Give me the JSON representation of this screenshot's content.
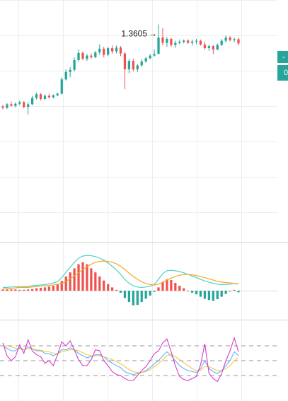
{
  "colors": {
    "up": "#26a69a",
    "down": "#ef5350",
    "macd_line": "#4dd0c6",
    "signal_line": "#f5a623",
    "k_line": "#5ab4ff",
    "d_line": "#f5c542",
    "j_line": "#d63cc8",
    "grid": "#eeeeee",
    "price_tag": "#26a69a",
    "axis_text": "#555555"
  },
  "price_axis": {
    "partial_labels": [
      "-",
      "0"
    ]
  },
  "chart_data": [
    {
      "type": "candlestick",
      "title": "",
      "annotation": {
        "label": "1.3605",
        "arrow": "→",
        "target_value": 1.3605
      },
      "ylim": [
        1.285,
        1.37
      ],
      "candles": [
        [
          1.333,
          1.3335,
          1.3318,
          1.3325
        ],
        [
          1.3325,
          1.3342,
          1.332,
          1.3338
        ],
        [
          1.3338,
          1.3348,
          1.333,
          1.3332
        ],
        [
          1.3332,
          1.3345,
          1.3326,
          1.334
        ],
        [
          1.334,
          1.3352,
          1.3334,
          1.3346
        ],
        [
          1.3346,
          1.335,
          1.3322,
          1.3328
        ],
        [
          1.3328,
          1.3345,
          1.33,
          1.3338
        ],
        [
          1.3338,
          1.337,
          1.3335,
          1.3362
        ],
        [
          1.3362,
          1.3382,
          1.3356,
          1.3376
        ],
        [
          1.3376,
          1.338,
          1.3352,
          1.3358
        ],
        [
          1.3358,
          1.3376,
          1.3355,
          1.337
        ],
        [
          1.337,
          1.3378,
          1.336,
          1.3364
        ],
        [
          1.3364,
          1.3375,
          1.336,
          1.3372
        ],
        [
          1.3372,
          1.3382,
          1.3368,
          1.3378
        ],
        [
          1.3378,
          1.344,
          1.3375,
          1.3432
        ],
        [
          1.3432,
          1.347,
          1.3428,
          1.346
        ],
        [
          1.346,
          1.3478,
          1.344,
          1.3468
        ],
        [
          1.3468,
          1.3515,
          1.3462,
          1.3505
        ],
        [
          1.3505,
          1.3545,
          1.3498,
          1.3532
        ],
        [
          1.3532,
          1.3538,
          1.3505,
          1.351
        ],
        [
          1.351,
          1.3528,
          1.3502,
          1.3522
        ],
        [
          1.3522,
          1.353,
          1.351,
          1.3516
        ],
        [
          1.3516,
          1.354,
          1.3512,
          1.3534
        ],
        [
          1.3534,
          1.3565,
          1.3525,
          1.3548
        ],
        [
          1.3548,
          1.3555,
          1.3515,
          1.3525
        ],
        [
          1.3525,
          1.3555,
          1.352,
          1.355
        ],
        [
          1.355,
          1.356,
          1.353,
          1.3538
        ],
        [
          1.3538,
          1.356,
          1.353,
          1.3552
        ],
        [
          1.3552,
          1.3558,
          1.352,
          1.353
        ],
        [
          1.353,
          1.3536,
          1.3395,
          1.347
        ],
        [
          1.347,
          1.351,
          1.3455,
          1.3502
        ],
        [
          1.3502,
          1.351,
          1.3462,
          1.347
        ],
        [
          1.347,
          1.349,
          1.346,
          1.3485
        ],
        [
          1.3485,
          1.3508,
          1.348,
          1.35
        ],
        [
          1.35,
          1.3518,
          1.3495,
          1.3512
        ],
        [
          1.3512,
          1.3528,
          1.3508,
          1.3522
        ],
        [
          1.3522,
          1.3545,
          1.3518,
          1.3528
        ],
        [
          1.3528,
          1.364,
          1.3528,
          1.359
        ],
        [
          1.359,
          1.3625,
          1.356,
          1.357
        ],
        [
          1.357,
          1.3592,
          1.3555,
          1.3585
        ],
        [
          1.3585,
          1.359,
          1.3555,
          1.3562
        ],
        [
          1.3562,
          1.3578,
          1.3552,
          1.357
        ],
        [
          1.357,
          1.3582,
          1.3565,
          1.3574
        ],
        [
          1.3574,
          1.3583,
          1.3568,
          1.3579
        ],
        [
          1.3579,
          1.3584,
          1.3566,
          1.357
        ],
        [
          1.357,
          1.3582,
          1.356,
          1.3575
        ],
        [
          1.3575,
          1.3585,
          1.3565,
          1.3578
        ],
        [
          1.3578,
          1.3582,
          1.356,
          1.3564
        ],
        [
          1.3564,
          1.3575,
          1.3545,
          1.355
        ],
        [
          1.355,
          1.3564,
          1.354,
          1.3558
        ],
        [
          1.3558,
          1.3562,
          1.3528,
          1.3545
        ],
        [
          1.3545,
          1.3568,
          1.3542,
          1.3562
        ],
        [
          1.3562,
          1.3585,
          1.3558,
          1.3578
        ],
        [
          1.3578,
          1.3598,
          1.357,
          1.359
        ],
        [
          1.359,
          1.3595,
          1.3575,
          1.358
        ],
        [
          1.358,
          1.359,
          1.3572,
          1.3584
        ],
        [
          1.3584,
          1.359,
          1.356,
          1.3568
        ]
      ]
    },
    {
      "type": "macd",
      "title": "",
      "zero_line": true,
      "histogram": [
        0.3,
        0.3,
        0.3,
        0.3,
        0.2,
        0.2,
        0.3,
        0.4,
        0.6,
        0.7,
        0.8,
        1.0,
        1.2,
        1.5,
        2.4,
        3.5,
        4.5,
        5.5,
        6.5,
        7.0,
        6.5,
        5.5,
        4.5,
        3.5,
        2.5,
        1.6,
        0.8,
        0.2,
        -0.5,
        -1.8,
        -2.8,
        -3.6,
        -3.5,
        -2.8,
        -2.0,
        -1.2,
        -0.3,
        0.8,
        2.1,
        2.8,
        2.6,
        1.9,
        1.2,
        0.6,
        0.0,
        -0.5,
        -0.9,
        -1.5,
        -2.0,
        -2.3,
        -2.5,
        -2.1,
        -1.5,
        -0.8,
        -0.2,
        0.2,
        -0.4
      ],
      "macd_line": [
        0.8,
        0.8,
        0.9,
        1.0,
        1.0,
        1.0,
        1.1,
        1.2,
        1.3,
        1.4,
        1.5,
        1.7,
        1.9,
        2.2,
        3.2,
        4.5,
        5.8,
        7.0,
        8.0,
        8.5,
        8.7,
        8.6,
        8.4,
        8.0,
        7.5,
        6.8,
        6.0,
        5.1,
        4.0,
        2.8,
        1.8,
        1.2,
        0.9,
        0.8,
        0.9,
        1.1,
        1.5,
        2.8,
        4.2,
        4.9,
        5.0,
        4.9,
        4.7,
        4.4,
        4.0,
        3.6,
        3.2,
        2.8,
        2.4,
        2.1,
        1.8,
        1.6,
        1.5,
        1.5,
        1.6,
        1.8,
        1.6
      ],
      "signal_line": [
        0.5,
        0.5,
        0.6,
        0.7,
        0.8,
        0.8,
        0.8,
        0.9,
        1.0,
        1.1,
        1.2,
        1.3,
        1.4,
        1.6,
        1.8,
        2.3,
        2.9,
        3.6,
        4.4,
        5.2,
        5.9,
        6.5,
        7.0,
        7.2,
        7.3,
        7.2,
        7.0,
        6.6,
        6.0,
        5.2,
        4.3,
        3.5,
        2.8,
        2.2,
        1.8,
        1.5,
        1.4,
        1.6,
        2.1,
        2.6,
        3.1,
        3.5,
        3.8,
        4.0,
        4.0,
        3.9,
        3.7,
        3.5,
        3.2,
        2.9,
        2.6,
        2.3,
        2.1,
        2.0,
        1.9,
        1.8,
        1.7
      ]
    },
    {
      "type": "line",
      "title": "",
      "reference_levels": [
        20,
        50,
        80
      ],
      "ylim": [
        0,
        100
      ],
      "series": [
        {
          "key": "k",
          "values": [
            80,
            75,
            70,
            70,
            76,
            72,
            78,
            74,
            70,
            70,
            65,
            64,
            60,
            64,
            72,
            72,
            76,
            72,
            65,
            60,
            56,
            58,
            62,
            62,
            58,
            50,
            45,
            40,
            36,
            28,
            24,
            22,
            24,
            26,
            30,
            36,
            44,
            50,
            60,
            68,
            60,
            50,
            40,
            34,
            30,
            28,
            26,
            34,
            50,
            34,
            28,
            24,
            30,
            40,
            50,
            68,
            60
          ]
        },
        {
          "key": "d",
          "values": [
            80,
            80,
            78,
            75,
            74,
            73,
            74,
            74,
            72,
            71,
            69,
            68,
            65,
            64,
            68,
            70,
            72,
            72,
            70,
            66,
            62,
            60,
            60,
            60,
            58,
            55,
            52,
            48,
            44,
            38,
            32,
            28,
            26,
            26,
            28,
            32,
            38,
            44,
            52,
            60,
            62,
            58,
            52,
            46,
            40,
            34,
            30,
            30,
            38,
            38,
            34,
            30,
            30,
            34,
            40,
            50,
            56
          ]
        },
        {
          "key": "j",
          "values": [
            86,
            60,
            50,
            58,
            82,
            65,
            92,
            70,
            62,
            58,
            45,
            50,
            40,
            62,
            88,
            80,
            90,
            72,
            52,
            40,
            40,
            52,
            72,
            70,
            50,
            40,
            28,
            22,
            20,
            14,
            10,
            10,
            20,
            30,
            38,
            50,
            64,
            70,
            86,
            94,
            68,
            40,
            18,
            12,
            10,
            14,
            18,
            42,
            84,
            24,
            14,
            8,
            24,
            50,
            70,
            96,
            68
          ]
        }
      ]
    }
  ]
}
